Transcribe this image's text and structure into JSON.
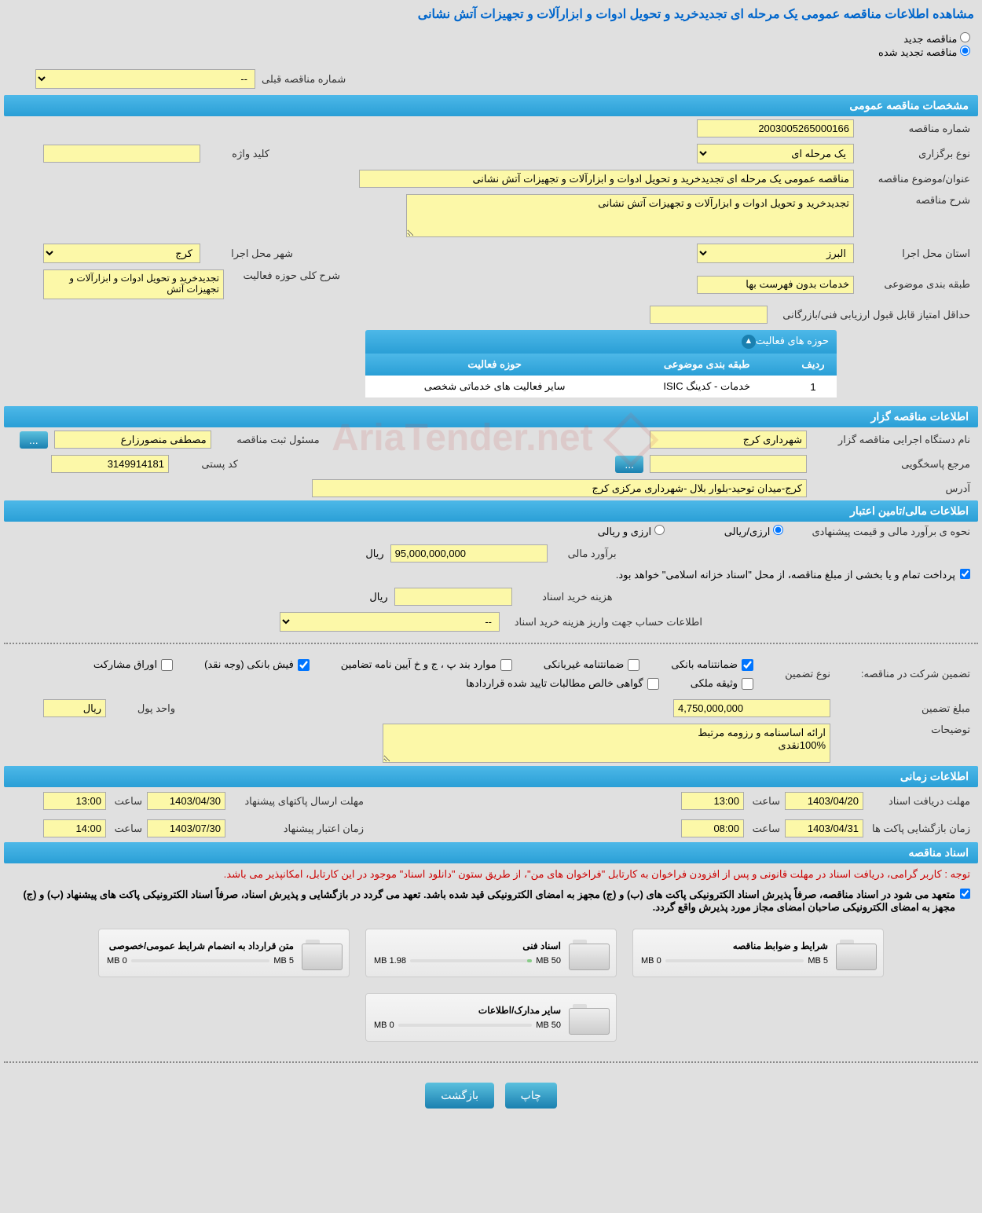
{
  "page_title": "مشاهده اطلاعات مناقصه عمومی یک مرحله ای تجدیدخرید و تحویل ادوات و ابزارآلات و تجهیزات آتش نشانی",
  "tender_type": {
    "new_label": "مناقصه جدید",
    "renewed_label": "مناقصه تجدید شده",
    "selected": "renewed"
  },
  "prev_tender": {
    "label": "شماره مناقصه قبلی",
    "value": "--"
  },
  "sections": {
    "general": "مشخصات مناقصه عمومی",
    "organizer": "اطلاعات مناقصه گزار",
    "financial": "اطلاعات مالی/تامین اعتبار",
    "timing": "اطلاعات زمانی",
    "documents": "اسناد مناقصه"
  },
  "general": {
    "tender_no_label": "شماره مناقصه",
    "tender_no": "2003005265000166",
    "hold_type_label": "نوع برگزاری",
    "hold_type": "یک مرحله ای",
    "keyword_label": "کلید واژه",
    "keyword": "",
    "subject_label": "عنوان/موضوع مناقصه",
    "subject": "مناقصه عمومی یک مرحله ای تجدیدخرید و تحویل ادوات و ابزارآلات و تجهیزات آتش نشانی",
    "desc_label": "شرح مناقصه",
    "desc": "تجدیدخرید و تحویل ادوات و ابزارآلات و تجهیزات آتش نشانی",
    "province_label": "استان محل اجرا",
    "province": "البرز",
    "city_label": "شهر محل اجرا",
    "city": "کرج",
    "subject_class_label": "طبقه بندی موضوعی",
    "subject_class": "خدمات بدون فهرست بها",
    "activity_scope_label": "شرح کلی حوزه فعالیت",
    "activity_scope": "تجدیدخرید و تحویل ادوات و ابزارآلات و تجهیزات آتش",
    "min_score_label": "حداقل امتیاز قابل قبول ارزیابی فنی/بازرگانی",
    "min_score": ""
  },
  "activity_table": {
    "header": "حوزه های فعالیت",
    "col_row": "ردیف",
    "col_class": "طبقه بندی موضوعی",
    "col_scope": "حوزه فعالیت",
    "rows": [
      {
        "idx": "1",
        "class": "خدمات - کدینگ ISIC",
        "scope": "سایر فعالیت های خدماتی شخصی"
      }
    ]
  },
  "organizer": {
    "exec_label": "نام دستگاه اجرایی مناقصه گزار",
    "exec": "شهرداری کرج",
    "reg_resp_label": "مسئول ثبت مناقصه",
    "reg_resp": "مصطفی منصورزارع",
    "reference_label": "مرجع پاسخگویی",
    "reference": "",
    "postal_label": "کد پستی",
    "postal": "3149914181",
    "address_label": "آدرس",
    "address": "کرج-میدان توحید-بلوار بلال -شهرداری مرکزی کرج"
  },
  "financial": {
    "estimate_method_label": "نحوه ی برآورد مالی و قیمت پیشنهادی",
    "opt_rial": "ارزی/ریالی",
    "opt_fx": "ارزی و ریالی",
    "estimate_label": "برآورد مالی",
    "estimate": "95,000,000,000",
    "unit": "ریال",
    "treasury_note": "پرداخت تمام و یا بخشی از مبلغ مناقصه، از محل \"اسناد خزانه اسلامی\" خواهد بود.",
    "doc_cost_label": "هزینه خرید اسناد",
    "doc_cost": "",
    "account_info_label": "اطلاعات حساب جهت واریز هزینه خرید اسناد",
    "account_info": "--",
    "guarantee_label": "تضمین شرکت در مناقصه:",
    "guarantee_type_label": "نوع تضمین",
    "checks": {
      "bank_guarantee": "ضمانتنامه بانکی",
      "non_bank_guarantee": "ضمانتنامه غیربانکی",
      "bylaw_items": "موارد بند پ ، ج و خ آیین نامه تضامین",
      "bank_receipt": "فیش بانکی (وجه نقد)",
      "participation_paper": "اوراق مشارکت",
      "property_deed": "وثیقه ملکی",
      "net_claims": "گواهی خالص مطالبات تایید شده قراردادها"
    },
    "guarantee_amount_label": "مبلغ تضمین",
    "guarantee_amount": "4,750,000,000",
    "money_unit_label": "واحد پول",
    "money_unit": "ریال",
    "notes_label": "توضیحات",
    "notes": "ارائه اساسنامه و رزومه مرتبط\n100%نقدی"
  },
  "timing": {
    "doc_deadline_label": "مهلت دریافت اسناد",
    "doc_deadline_date": "1403/04/20",
    "doc_deadline_time_label": "ساعت",
    "doc_deadline_time": "13:00",
    "proposal_deadline_label": "مهلت ارسال پاکتهای پیشنهاد",
    "proposal_deadline_date": "1403/04/30",
    "proposal_deadline_time": "13:00",
    "opening_label": "زمان بازگشایی پاکت ها",
    "opening_date": "1403/04/31",
    "opening_time": "08:00",
    "validity_label": "زمان اعتبار پیشنهاد",
    "validity_date": "1403/07/30",
    "validity_time": "14:00"
  },
  "documents": {
    "red_note": "توجه : کاربر گرامی، دریافت اسناد در مهلت قانونی و پس از افزودن فراخوان به کارتابل \"فراخوان های من\"، از طریق ستون \"دانلود اسناد\" موجود در این کارتابل، امکانپذیر می باشد.",
    "black_note": "متعهد می شود در اسناد مناقصه، صرفاً پذیرش اسناد الکترونیکی پاکت های (ب) و (ج) مجهز به امضای الکترونیکی قید شده باشد. تعهد می گردد در بازگشایی و پذیرش اسناد، صرفاً اسناد الکترونیکی پاکت های پیشنهاد (ب) و (ج) مجهز به امضای الکترونیکی صاحبان امضای مجاز مورد پذیرش واقع گردد.",
    "boxes": [
      {
        "title": "شرایط و ضوابط مناقصه",
        "used": "0 MB",
        "cap": "5 MB",
        "fill_pct": 0
      },
      {
        "title": "اسناد فنی",
        "used": "1.98 MB",
        "cap": "50 MB",
        "fill_pct": 4
      },
      {
        "title": "متن قرارداد به انضمام شرایط عمومی/خصوصی",
        "used": "0 MB",
        "cap": "5 MB",
        "fill_pct": 0
      },
      {
        "title": "سایر مدارک/اطلاعات",
        "used": "0 MB",
        "cap": "50 MB",
        "fill_pct": 0
      }
    ]
  },
  "buttons": {
    "print": "چاپ",
    "back": "بازگشت"
  },
  "watermark": "AriaTender.net"
}
